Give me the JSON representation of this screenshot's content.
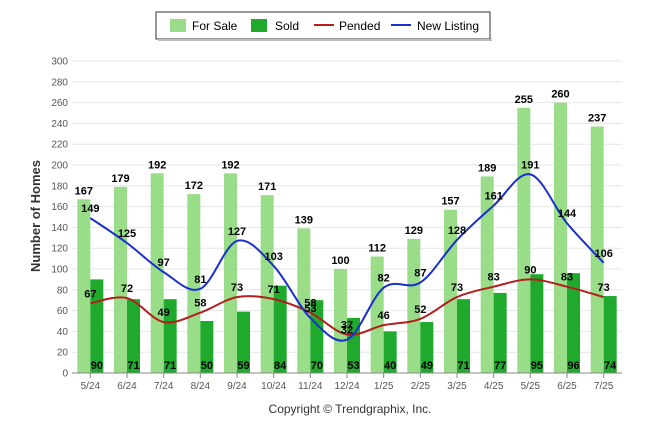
{
  "chart_data": {
    "type": "bar",
    "categories": [
      "5/24",
      "6/24",
      "7/24",
      "8/24",
      "9/24",
      "10/24",
      "11/24",
      "12/24",
      "1/25",
      "2/25",
      "3/25",
      "4/25",
      "5/25",
      "6/25",
      "7/25"
    ],
    "series": [
      {
        "name": "For Sale",
        "type": "bar",
        "color": "#99dd88",
        "values": [
          167,
          179,
          192,
          172,
          192,
          171,
          139,
          100,
          112,
          129,
          157,
          189,
          255,
          260,
          237
        ]
      },
      {
        "name": "Sold",
        "type": "bar",
        "color": "#1faa2e",
        "values": [
          90,
          71,
          71,
          50,
          59,
          84,
          70,
          53,
          40,
          49,
          71,
          77,
          95,
          96,
          74
        ]
      },
      {
        "name": "Pended",
        "type": "line",
        "color": "#b41e1e",
        "values": [
          67,
          72,
          49,
          58,
          73,
          71,
          58,
          37,
          46,
          52,
          73,
          83,
          90,
          83,
          73
        ]
      },
      {
        "name": "New Listing",
        "type": "line",
        "color": "#1a2fcc",
        "values": [
          149,
          125,
          97,
          81,
          127,
          103,
          53,
          32,
          82,
          87,
          128,
          161,
          191,
          144,
          106
        ]
      }
    ],
    "ylabel": "Number of Homes",
    "ylim": [
      0,
      300
    ],
    "yticks": [
      0,
      20,
      40,
      60,
      80,
      100,
      120,
      140,
      160,
      180,
      200,
      220,
      240,
      260,
      280,
      300
    ],
    "grid": true,
    "legend_position": "top-center"
  },
  "footer": {
    "copyright": "Copyright © Trendgraphix, Inc."
  }
}
